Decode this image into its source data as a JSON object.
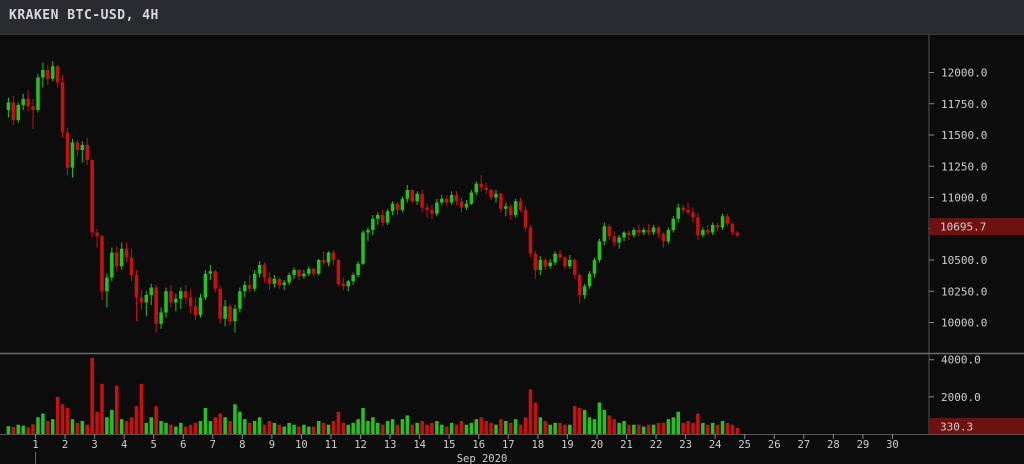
{
  "window": {
    "title": "KRAKEN BTC-USD, 4H"
  },
  "colors": {
    "up": "#22c31e",
    "down": "#c81010",
    "last_price_bg": "#6e1111",
    "grid": "#3c3c3c"
  },
  "chart_data": {
    "type": "candlestick",
    "title": "KRAKEN BTC-USD, 4H",
    "xlabel": "Sep 2020",
    "price_axis": {
      "ticks": [
        "12000.0",
        "11750.0",
        "11500.0",
        "11250.0",
        "11000.0",
        "10750.0",
        "10500.0",
        "10250.0",
        "10000.0"
      ],
      "ylim": [
        9780,
        12300
      ]
    },
    "volume_axis": {
      "ticks": [
        "4000.0",
        "2000.0"
      ],
      "ylim": [
        0,
        4200
      ]
    },
    "last_price_label": "10695.7",
    "last_volume_label": "330.3",
    "x_ticks": [
      "1",
      "2",
      "3",
      "4",
      "5",
      "6",
      "7",
      "8",
      "9",
      "10",
      "11",
      "12",
      "13",
      "14",
      "15",
      "16",
      "17",
      "18",
      "19",
      "20",
      "21",
      "22",
      "23",
      "24",
      "25",
      "26",
      "27",
      "28",
      "29",
      "30"
    ],
    "candles_per_day": 6,
    "candles": [
      [
        11700,
        11800,
        11640,
        11760,
        420
      ],
      [
        11760,
        11810,
        11580,
        11620,
        380
      ],
      [
        11620,
        11760,
        11600,
        11740,
        500
      ],
      [
        11740,
        11830,
        11700,
        11790,
        450
      ],
      [
        11790,
        11860,
        11690,
        11730,
        360
      ],
      [
        11730,
        11790,
        11550,
        11700,
        520
      ],
      [
        11700,
        11990,
        11680,
        11960,
        900
      ],
      [
        11960,
        12080,
        11880,
        12020,
        1100
      ],
      [
        12020,
        12060,
        11900,
        11950,
        700
      ],
      [
        11950,
        12090,
        11930,
        12050,
        800
      ],
      [
        12050,
        12060,
        11880,
        11920,
        2000
      ],
      [
        11920,
        11980,
        11480,
        11520,
        1600
      ],
      [
        11520,
        11560,
        11180,
        11240,
        1400
      ],
      [
        11240,
        11470,
        11160,
        11440,
        800
      ],
      [
        11440,
        11460,
        11330,
        11380,
        600
      ],
      [
        11380,
        11450,
        11280,
        11420,
        700
      ],
      [
        11420,
        11480,
        11260,
        11300,
        500
      ],
      [
        11300,
        11310,
        10680,
        10720,
        4100
      ],
      [
        10720,
        10750,
        10600,
        10690,
        1200
      ],
      [
        10690,
        10700,
        10180,
        10250,
        2700
      ],
      [
        10250,
        10390,
        10120,
        10360,
        900
      ],
      [
        10360,
        10600,
        10330,
        10560,
        1300
      ],
      [
        10560,
        10610,
        10410,
        10450,
        2600
      ],
      [
        10450,
        10640,
        10420,
        10590,
        800
      ],
      [
        10590,
        10640,
        10480,
        10520,
        700
      ],
      [
        10520,
        10590,
        10330,
        10380,
        900
      ],
      [
        10380,
        10420,
        10010,
        10200,
        1500
      ],
      [
        10200,
        10260,
        10100,
        10160,
        2700
      ],
      [
        10160,
        10250,
        10050,
        10220,
        600
      ],
      [
        10220,
        10310,
        10140,
        10280,
        900
      ],
      [
        10280,
        10300,
        9920,
        9990,
        1500
      ],
      [
        9990,
        10120,
        9950,
        10080,
        700
      ],
      [
        10080,
        10280,
        10040,
        10250,
        600
      ],
      [
        10250,
        10300,
        10120,
        10160,
        500
      ],
      [
        10160,
        10230,
        10090,
        10190,
        400
      ],
      [
        10190,
        10280,
        10110,
        10250,
        600
      ],
      [
        10250,
        10300,
        10150,
        10200,
        400
      ],
      [
        10200,
        10270,
        10070,
        10130,
        500
      ],
      [
        10130,
        10200,
        10020,
        10060,
        600
      ],
      [
        10060,
        10230,
        10040,
        10200,
        700
      ],
      [
        10200,
        10420,
        10180,
        10390,
        1400
      ],
      [
        10390,
        10460,
        10340,
        10410,
        700
      ],
      [
        10410,
        10420,
        10240,
        10270,
        900
      ],
      [
        10270,
        10290,
        9990,
        10030,
        1100
      ],
      [
        10030,
        10180,
        9970,
        10130,
        900
      ],
      [
        10130,
        10150,
        9980,
        10010,
        700
      ],
      [
        10010,
        10140,
        9920,
        10110,
        1600
      ],
      [
        10110,
        10280,
        10080,
        10250,
        1200
      ],
      [
        10250,
        10330,
        10200,
        10300,
        800
      ],
      [
        10300,
        10380,
        10240,
        10270,
        600
      ],
      [
        10270,
        10420,
        10250,
        10390,
        700
      ],
      [
        10390,
        10490,
        10360,
        10460,
        900
      ],
      [
        10460,
        10480,
        10320,
        10360,
        500
      ],
      [
        10360,
        10400,
        10260,
        10310,
        700
      ],
      [
        10310,
        10380,
        10280,
        10350,
        600
      ],
      [
        10350,
        10360,
        10270,
        10300,
        500
      ],
      [
        10300,
        10340,
        10260,
        10320,
        400
      ],
      [
        10320,
        10400,
        10300,
        10380,
        600
      ],
      [
        10380,
        10440,
        10350,
        10420,
        500
      ],
      [
        10420,
        10430,
        10340,
        10370,
        400
      ],
      [
        10370,
        10420,
        10350,
        10390,
        500
      ],
      [
        10390,
        10450,
        10370,
        10430,
        400
      ],
      [
        10430,
        10440,
        10370,
        10390,
        400
      ],
      [
        10390,
        10510,
        10380,
        10500,
        700
      ],
      [
        10500,
        10570,
        10460,
        10480,
        600
      ],
      [
        10480,
        10570,
        10450,
        10560,
        500
      ],
      [
        10560,
        10580,
        10460,
        10500,
        700
      ],
      [
        10500,
        10510,
        10290,
        10310,
        1200
      ],
      [
        10310,
        10360,
        10260,
        10290,
        600
      ],
      [
        10290,
        10340,
        10250,
        10330,
        500
      ],
      [
        10330,
        10400,
        10300,
        10380,
        600
      ],
      [
        10380,
        10490,
        10360,
        10470,
        800
      ],
      [
        10470,
        10740,
        10460,
        10720,
        1400
      ],
      [
        10720,
        10760,
        10650,
        10740,
        700
      ],
      [
        10740,
        10860,
        10700,
        10830,
        900
      ],
      [
        10830,
        10880,
        10780,
        10860,
        600
      ],
      [
        10860,
        10900,
        10770,
        10800,
        500
      ],
      [
        10800,
        10910,
        10780,
        10890,
        700
      ],
      [
        10890,
        10970,
        10860,
        10950,
        800
      ],
      [
        10950,
        10960,
        10860,
        10900,
        500
      ],
      [
        10900,
        11010,
        10880,
        10990,
        800
      ],
      [
        10990,
        11100,
        10960,
        11060,
        1000
      ],
      [
        11060,
        11070,
        10950,
        10970,
        500
      ],
      [
        10970,
        11050,
        10940,
        11030,
        600
      ],
      [
        11030,
        11060,
        10880,
        10920,
        700
      ],
      [
        10920,
        10950,
        10840,
        10900,
        500
      ],
      [
        10900,
        10940,
        10830,
        10870,
        600
      ],
      [
        10870,
        10990,
        10850,
        10960,
        700
      ],
      [
        10960,
        11020,
        10940,
        10990,
        500
      ],
      [
        10990,
        11020,
        10930,
        10960,
        400
      ],
      [
        10960,
        11050,
        10940,
        11020,
        600
      ],
      [
        11020,
        11050,
        10940,
        10970,
        500
      ],
      [
        10970,
        11000,
        10880,
        10920,
        700
      ],
      [
        10920,
        10980,
        10900,
        10950,
        500
      ],
      [
        10950,
        11060,
        10940,
        11040,
        600
      ],
      [
        11040,
        11130,
        11020,
        11110,
        800
      ],
      [
        11110,
        11180,
        11050,
        11080,
        900
      ],
      [
        11080,
        11120,
        11030,
        11060,
        700
      ],
      [
        11060,
        11070,
        10980,
        11000,
        600
      ],
      [
        11000,
        11060,
        10960,
        11030,
        500
      ],
      [
        11030,
        11040,
        10880,
        10910,
        800
      ],
      [
        10910,
        10960,
        10850,
        10930,
        700
      ],
      [
        10930,
        10950,
        10820,
        10860,
        600
      ],
      [
        10860,
        10990,
        10840,
        10970,
        800
      ],
      [
        10970,
        11000,
        10880,
        10900,
        500
      ],
      [
        10900,
        10930,
        10730,
        10760,
        900
      ],
      [
        10760,
        10780,
        10520,
        10550,
        2400
      ],
      [
        10550,
        10570,
        10350,
        10420,
        1700
      ],
      [
        10420,
        10530,
        10380,
        10500,
        900
      ],
      [
        10500,
        10520,
        10420,
        10450,
        700
      ],
      [
        10450,
        10510,
        10430,
        10480,
        500
      ],
      [
        10480,
        10570,
        10460,
        10550,
        600
      ],
      [
        10550,
        10580,
        10500,
        10520,
        600
      ],
      [
        10520,
        10530,
        10420,
        10450,
        500
      ],
      [
        10450,
        10540,
        10430,
        10500,
        500
      ],
      [
        10500,
        10510,
        10350,
        10380,
        1500
      ],
      [
        10380,
        10390,
        10150,
        10220,
        1400
      ],
      [
        10220,
        10310,
        10190,
        10290,
        1300
      ],
      [
        10290,
        10410,
        10270,
        10390,
        900
      ],
      [
        10390,
        10520,
        10360,
        10500,
        800
      ],
      [
        10500,
        10670,
        10480,
        10650,
        1700
      ],
      [
        10650,
        10800,
        10620,
        10770,
        1300
      ],
      [
        10770,
        10790,
        10660,
        10690,
        1000
      ],
      [
        10690,
        10730,
        10610,
        10640,
        800
      ],
      [
        10640,
        10700,
        10590,
        10680,
        600
      ],
      [
        10680,
        10730,
        10650,
        10720,
        700
      ],
      [
        10720,
        10740,
        10660,
        10700,
        500
      ],
      [
        10700,
        10760,
        10680,
        10740,
        500
      ],
      [
        10740,
        10780,
        10690,
        10720,
        500
      ],
      [
        10720,
        10760,
        10700,
        10740,
        400
      ],
      [
        10740,
        10790,
        10700,
        10720,
        500
      ],
      [
        10720,
        10780,
        10700,
        10760,
        500
      ],
      [
        10760,
        10770,
        10680,
        10710,
        600
      ],
      [
        10710,
        10720,
        10600,
        10650,
        600
      ],
      [
        10650,
        10760,
        10630,
        10740,
        800
      ],
      [
        10740,
        10850,
        10720,
        10830,
        900
      ],
      [
        10830,
        10950,
        10800,
        10920,
        1200
      ],
      [
        10920,
        10940,
        10870,
        10900,
        600
      ],
      [
        10900,
        10960,
        10860,
        10880,
        700
      ],
      [
        10880,
        10920,
        10800,
        10840,
        600
      ],
      [
        10840,
        10880,
        10660,
        10700,
        1100
      ],
      [
        10700,
        10760,
        10680,
        10740,
        600
      ],
      [
        10740,
        10780,
        10700,
        10720,
        500
      ],
      [
        10720,
        10800,
        10700,
        10780,
        600
      ],
      [
        10780,
        10800,
        10730,
        10760,
        500
      ],
      [
        10760,
        10870,
        10740,
        10850,
        700
      ],
      [
        10850,
        10870,
        10770,
        10790,
        600
      ],
      [
        10790,
        10800,
        10700,
        10720,
        500
      ],
      [
        10720,
        10730,
        10680,
        10696,
        330
      ]
    ]
  }
}
